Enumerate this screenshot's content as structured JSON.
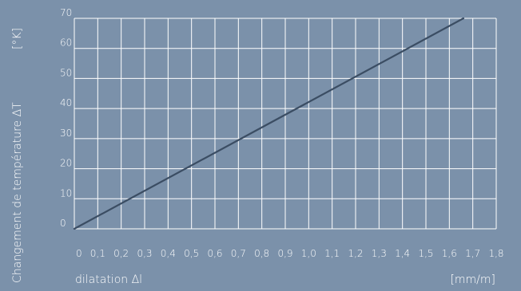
{
  "chart_data": {
    "type": "line",
    "x_ticks": [
      "0",
      "0,1",
      "0,2",
      "0,3",
      "0,4",
      "0,5",
      "0,6",
      "0,7",
      "0,8",
      "0,9",
      "1,0",
      "1,1",
      "1,2",
      "1,3",
      "1,4",
      "1,5",
      "1,6",
      "1,7",
      "1,8"
    ],
    "y_ticks": [
      "0",
      "10",
      "20",
      "30",
      "40",
      "50",
      "60",
      "70"
    ],
    "xlim": [
      0,
      1.8
    ],
    "ylim": [
      0,
      70
    ],
    "series": [
      {
        "x": [
          0,
          1.66
        ],
        "y": [
          0,
          70
        ]
      }
    ],
    "xlabel": "dilatation Δl",
    "xunit": "[mm/m]",
    "ylabel": "Changement de température ΔT",
    "yunit": "[°K]",
    "grid": true,
    "colors": {
      "background": "#7b91aa",
      "grid": "#ffffff",
      "line": "#3b4d63",
      "text": "#ffffff"
    }
  }
}
